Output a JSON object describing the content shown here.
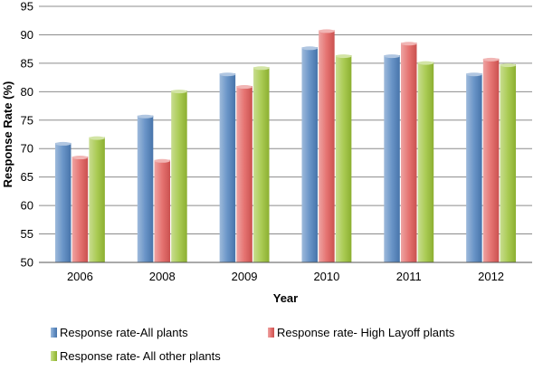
{
  "chart_data": {
    "type": "bar",
    "title": "",
    "xlabel": "Year",
    "ylabel": "Response Rate (%)",
    "ylim": [
      50,
      95
    ],
    "yticks": [
      50,
      55,
      60,
      65,
      70,
      75,
      80,
      85,
      90,
      95
    ],
    "grid": true,
    "legend_position": "bottom",
    "categories": [
      "2006",
      "2008",
      "2009",
      "2010",
      "2011",
      "2012"
    ],
    "series": [
      {
        "name": "Response rate-All plants",
        "color": "#4f81bd",
        "values": [
          71.0,
          75.8,
          83.2,
          87.8,
          86.4,
          83.2
        ]
      },
      {
        "name": "Response rate- High Layoff plants",
        "color": "#e05a58",
        "values": [
          68.6,
          68.0,
          81.0,
          90.8,
          88.6,
          85.8
        ]
      },
      {
        "name": "Response rate- All other plants",
        "color": "#9bc236",
        "values": [
          72.0,
          80.2,
          84.3,
          86.4,
          85.2,
          84.8
        ]
      }
    ]
  }
}
